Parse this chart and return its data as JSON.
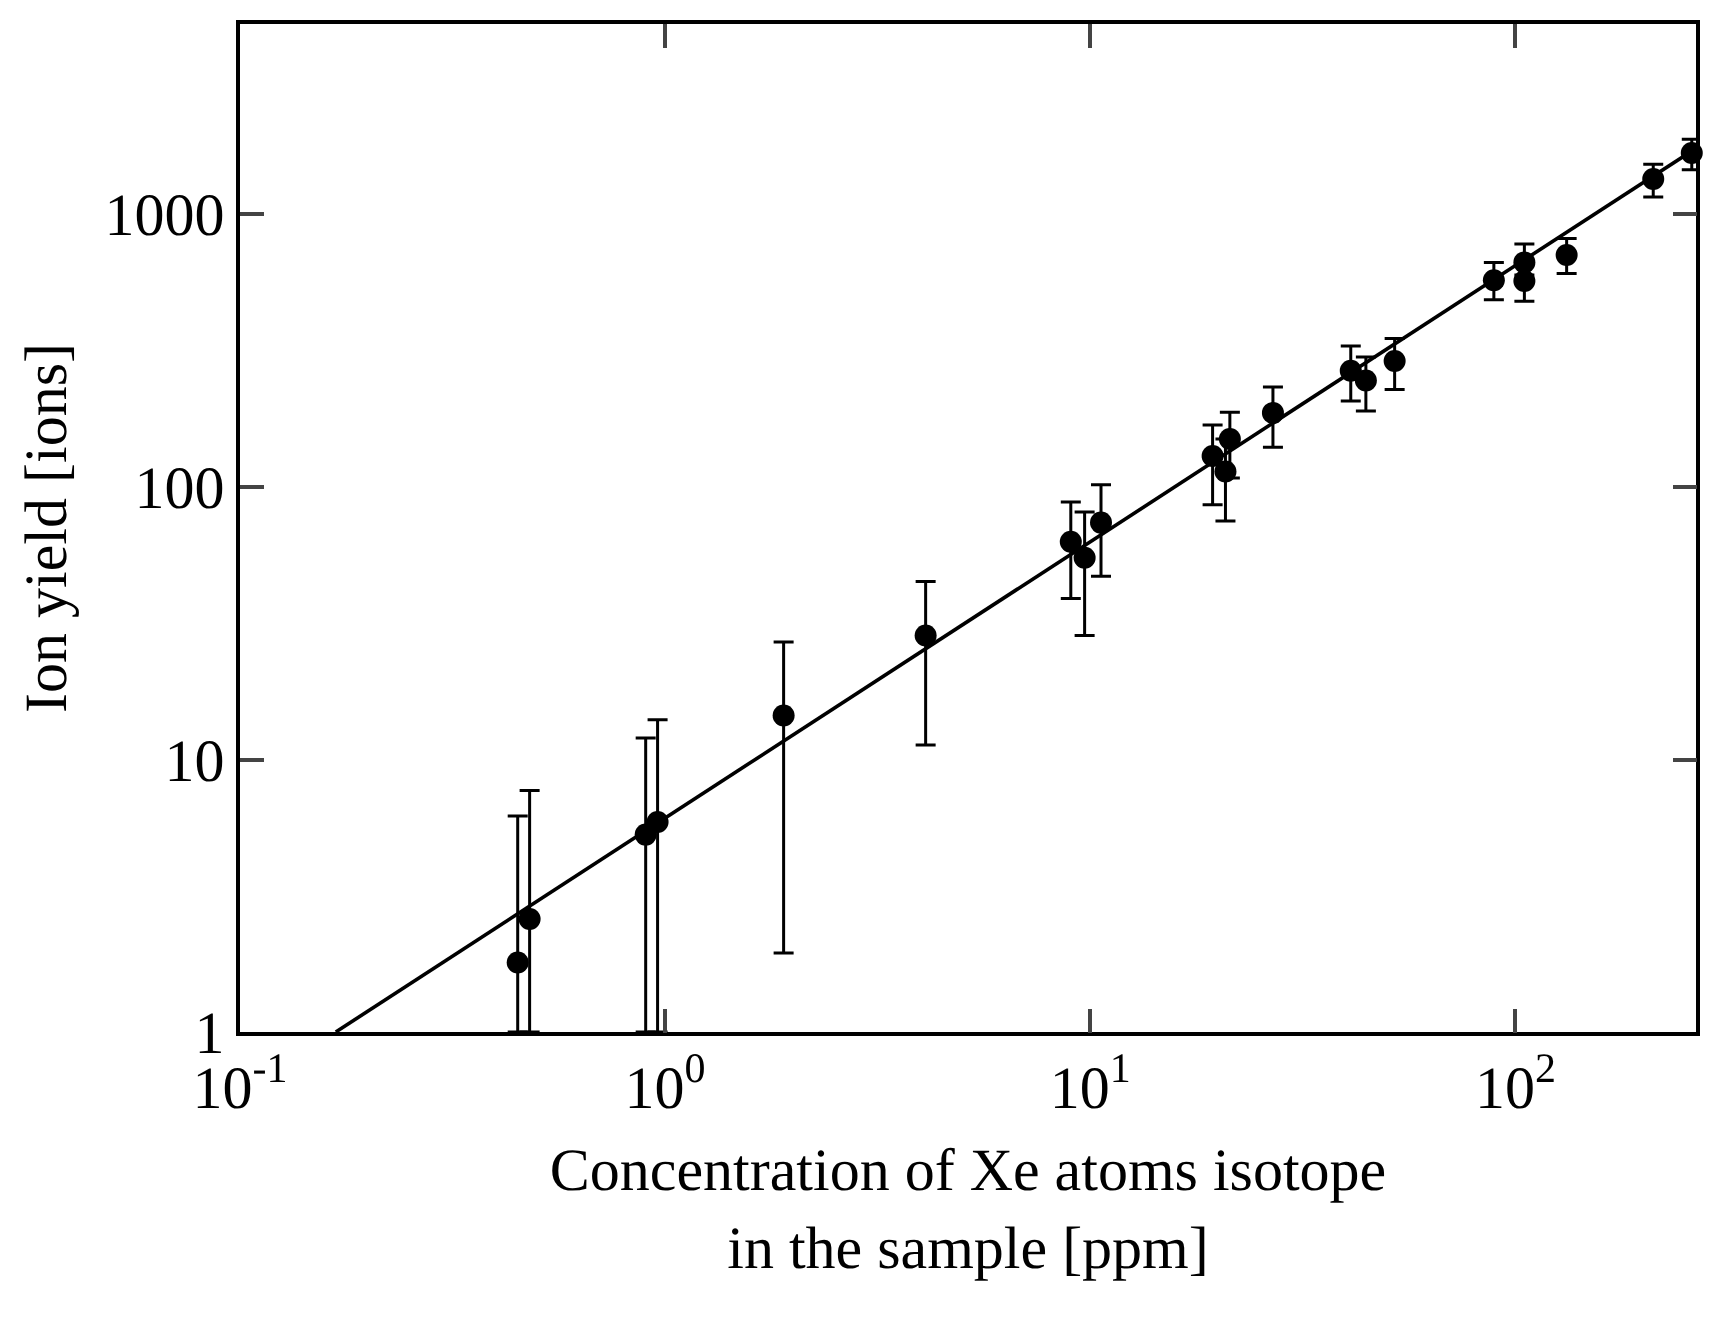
{
  "chart_data": {
    "type": "scatter",
    "xlabel": "Concentration of Xe atoms isotope\nin the sample [ppm]",
    "ylabel": "Ion yield [ions]",
    "log": "xy",
    "grid": false,
    "xlim": [
      0.1,
      266
    ],
    "ylim": [
      1,
      5000
    ],
    "xticks": [
      {
        "value": 0.1,
        "label": "10$^{-1}$"
      },
      {
        "value": 1,
        "label": "10$^{0}$"
      },
      {
        "value": 10,
        "label": "10$^{1}$"
      },
      {
        "value": 100,
        "label": "10$^{2}$"
      }
    ],
    "yticks": [
      1,
      10,
      100,
      1000
    ],
    "series": [
      {
        "color": "#000000",
        "marker": "circle",
        "x": [
          0.45,
          0.48,
          0.9,
          0.96,
          1.9,
          4.1,
          9.0,
          9.7,
          10.6,
          19.4,
          20.8,
          21.3,
          26.9,
          41,
          44.5,
          52,
          89,
          105,
          105,
          132,
          211,
          260
        ],
        "values": [
          1.8,
          2.6,
          5.3,
          5.9,
          14.5,
          28.5,
          63,
          55,
          74,
          130,
          114,
          150,
          187,
          267,
          246,
          290,
          574,
          667,
          570,
          710,
          1350,
          1680
        ],
        "errors": [
          [
            1,
            6.2
          ],
          [
            1,
            7.7
          ],
          [
            1,
            12
          ],
          [
            1,
            14
          ],
          [
            1.95,
            27
          ],
          [
            11.3,
            45
          ],
          [
            39,
            88
          ],
          [
            28.5,
            81
          ],
          [
            47,
            102
          ],
          [
            86,
            169
          ],
          [
            75,
            150
          ],
          [
            108,
            188
          ],
          [
            140,
            233
          ],
          [
            207,
            329
          ],
          [
            190,
            300
          ],
          [
            228,
            351
          ],
          [
            486,
            667
          ],
          [
            600,
            780
          ],
          [
            480,
            570
          ],
          [
            607,
            817
          ],
          [
            1160,
            1530
          ],
          [
            1460,
            1890
          ]
        ]
      },
      {
        "type": "line",
        "color": "#000000",
        "line_style": "solid",
        "x": [
          0.168,
          266
        ],
        "values": [
          1,
          1750
        ]
      }
    ]
  }
}
